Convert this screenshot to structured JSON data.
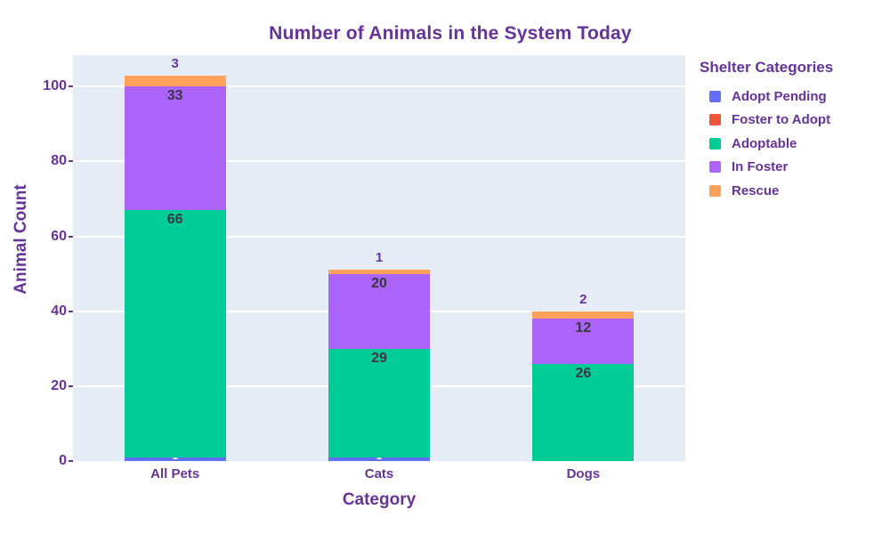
{
  "title": "Number of Animals in the System Today",
  "chart_data": {
    "type": "bar",
    "stacked": true,
    "title": "Number of Animals in the System Today",
    "xlabel": "Category",
    "ylabel": "Animal Count",
    "categories": [
      "All Pets",
      "Cats",
      "Dogs"
    ],
    "series": [
      {
        "name": "Adopt Pending",
        "color": "#636EFA",
        "values": [
          1,
          1,
          0
        ]
      },
      {
        "name": "Foster to Adopt",
        "color": "#EF553B",
        "values": [
          0,
          0,
          0
        ]
      },
      {
        "name": "Adoptable",
        "color": "#00CC96",
        "values": [
          66,
          29,
          26
        ]
      },
      {
        "name": "In Foster",
        "color": "#AB63FA",
        "values": [
          33,
          20,
          12
        ]
      },
      {
        "name": "Rescue",
        "color": "#FFA15A",
        "values": [
          3,
          1,
          2
        ]
      }
    ],
    "bar_totals": [
      103,
      51,
      40
    ],
    "yticks": [
      0,
      20,
      40,
      60,
      80,
      100
    ],
    "ylim": [
      0,
      108.4
    ],
    "grid": true,
    "legend_title": "Shelter Categories",
    "legend_position": "right",
    "bar_labels": true
  },
  "colors": {
    "text": "#663399",
    "inside_label": "#3A3741",
    "outside_label": "#663399",
    "clipped_label": "#FFFFFF",
    "plot_background": "#E5ECF6",
    "gridline": "#FFFFFF",
    "figure_background": "#FFFFFF"
  }
}
